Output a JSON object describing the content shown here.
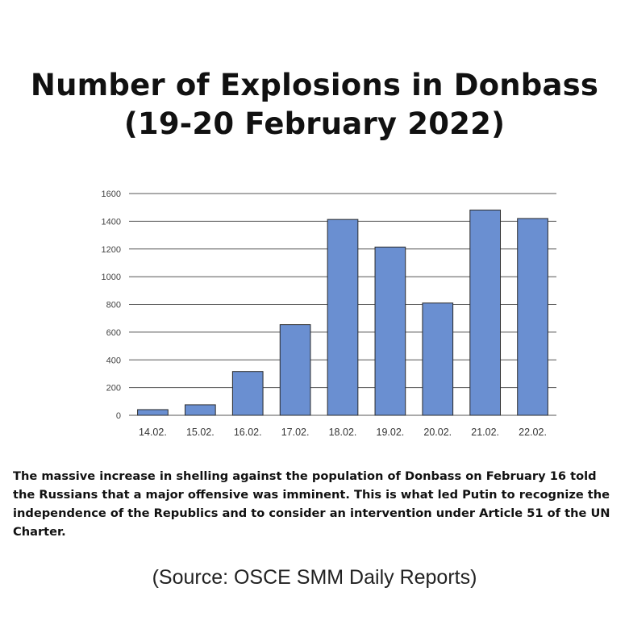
{
  "title": {
    "line1": "Number of Explosions in Donbass",
    "line2": "(19-20 February 2022)"
  },
  "chart_data": {
    "type": "bar",
    "categories": [
      "14.02.",
      "15.02.",
      "16.02.",
      "17.02.",
      "18.02.",
      "19.02.",
      "20.02.",
      "21.02.",
      "22.02."
    ],
    "values": [
      41,
      76,
      316,
      654,
      1413,
      1214,
      810,
      1481,
      1420
    ],
    "ylim": [
      0,
      1600
    ],
    "yticks": [
      0,
      200,
      400,
      600,
      800,
      1000,
      1200,
      1400,
      1600
    ],
    "grid": true,
    "bar_color": "#6a8fd1",
    "bar_stroke": "#2b2b2b",
    "grid_color": "#555555",
    "xlabel": "",
    "ylabel": ""
  },
  "caption": "The massive increase in shelling against the population of Donbass on February 16 told the Russians that a major offensive was imminent. This is what led Putin to recognize the independence of the Republics and to consider an intervention under Article 51 of the UN Charter.",
  "source": "(Source: OSCE SMM Daily Reports)"
}
